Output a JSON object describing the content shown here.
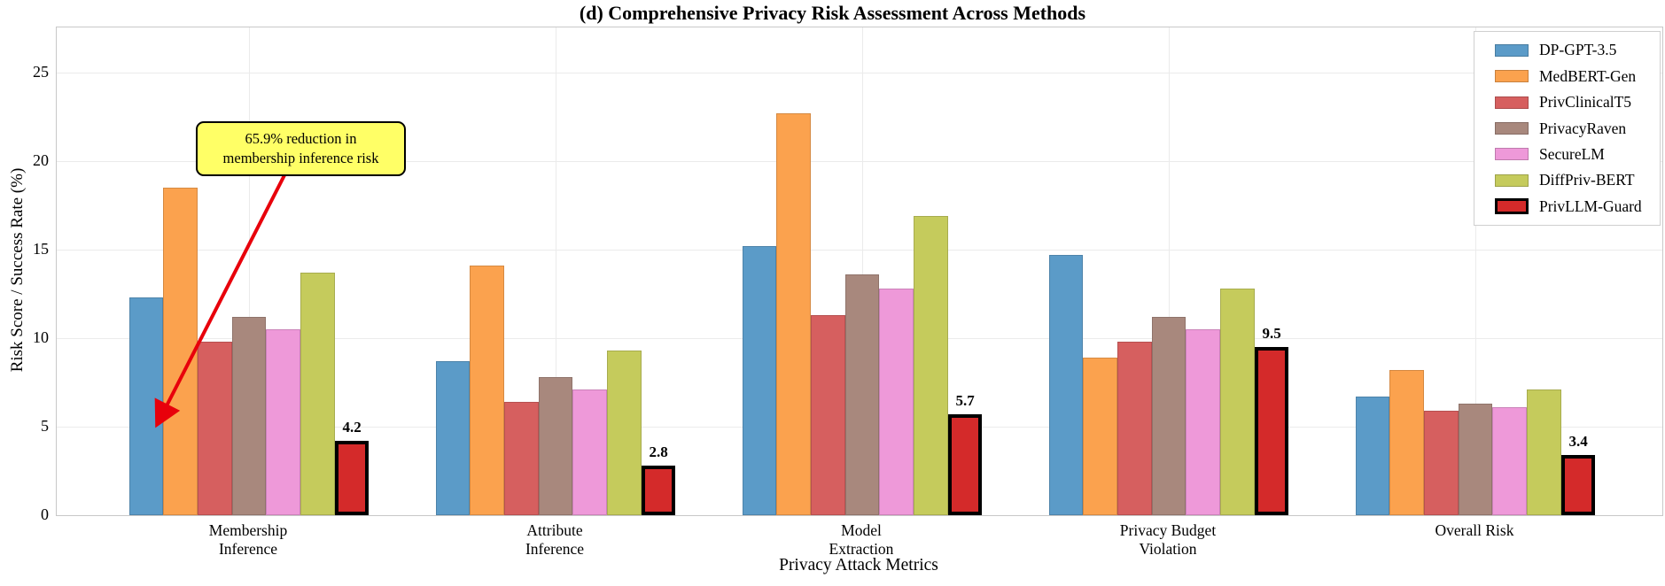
{
  "title": "(d) Comprehensive Privacy Risk Assessment Across Methods",
  "chart_data": {
    "type": "bar",
    "title": "(d) Comprehensive Privacy Risk Assessment Across Methods",
    "xlabel": "Privacy Attack Metrics",
    "ylabel": "Risk Score / Success Rate (%)",
    "ylim": [
      0,
      27.5
    ],
    "yticks": [
      0,
      5,
      10,
      15,
      20,
      25
    ],
    "grid": true,
    "legend_position": "upper right",
    "categories": [
      [
        "Membership",
        "Inference"
      ],
      [
        "Attribute",
        "Inference"
      ],
      [
        "Model",
        "Extraction"
      ],
      [
        "Privacy Budget",
        "Violation"
      ],
      [
        "Overall Risk"
      ]
    ],
    "series": [
      {
        "name": "DP-GPT-3.5",
        "color": "#5B9BC8",
        "values": [
          12.3,
          8.7,
          15.2,
          14.7,
          6.7
        ]
      },
      {
        "name": "MedBERT-Gen",
        "color": "#FBA24E",
        "values": [
          18.5,
          14.1,
          22.7,
          8.9,
          8.2
        ]
      },
      {
        "name": "PrivClinicalT5",
        "color": "#D65F5F",
        "values": [
          9.8,
          6.4,
          11.3,
          9.8,
          5.9
        ]
      },
      {
        "name": "PrivacyRaven",
        "color": "#A8887D",
        "values": [
          11.2,
          7.8,
          13.6,
          11.2,
          6.3
        ]
      },
      {
        "name": "SecureLM",
        "color": "#EE99D9",
        "values": [
          10.5,
          7.1,
          12.8,
          10.5,
          6.1
        ]
      },
      {
        "name": "DiffPriv-BERT",
        "color": "#C5CB5C",
        "values": [
          13.7,
          9.3,
          16.9,
          12.8,
          7.1
        ]
      },
      {
        "name": "PrivLLM-Guard",
        "color": "#D42A2A",
        "values": [
          4.2,
          2.8,
          5.7,
          9.5,
          3.4
        ],
        "highlight": true,
        "show_labels": true,
        "value_labels": [
          "4.2",
          "2.8",
          "5.7",
          "9.5",
          "3.4"
        ]
      }
    ],
    "annotation": {
      "line1": "65.9% reduction in",
      "line2": "membership inference risk",
      "bg_color": "#FFFF66",
      "arrow_color": "#E8000B"
    }
  }
}
